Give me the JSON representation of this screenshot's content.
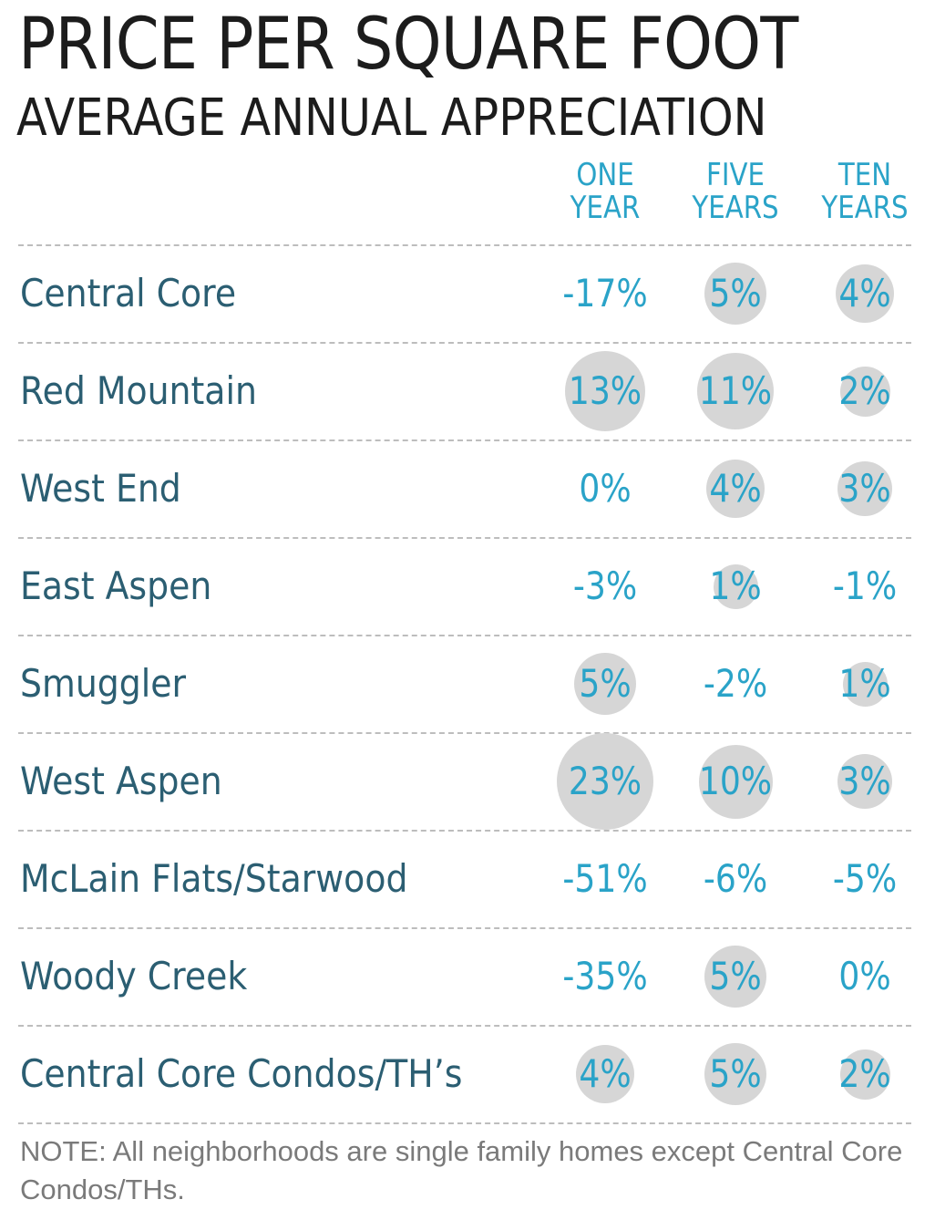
{
  "chart_data": {
    "type": "table",
    "title": "PRICE PER SQUARE FOOT",
    "subtitle": "AVERAGE ANNUAL APPRECIATION",
    "columns": [
      {
        "line1": "ONE",
        "line2": "YEAR"
      },
      {
        "line1": "FIVE",
        "line2": "YEARS"
      },
      {
        "line1": "TEN",
        "line2": "YEARS"
      }
    ],
    "rows": [
      {
        "name": "Central Core",
        "values": [
          -17,
          5,
          4
        ],
        "labels": [
          "-17%",
          "5%",
          "4%"
        ]
      },
      {
        "name": "Red Mountain",
        "values": [
          13,
          11,
          2
        ],
        "labels": [
          "13%",
          "11%",
          "2%"
        ]
      },
      {
        "name": "West End",
        "values": [
          0,
          4,
          3
        ],
        "labels": [
          "0%",
          "4%",
          "3%"
        ]
      },
      {
        "name": "East Aspen",
        "values": [
          -3,
          1,
          -1
        ],
        "labels": [
          "-3%",
          "1%",
          "-1%"
        ]
      },
      {
        "name": "Smuggler",
        "values": [
          5,
          -2,
          1
        ],
        "labels": [
          "5%",
          "-2%",
          "1%"
        ]
      },
      {
        "name": "West Aspen",
        "values": [
          23,
          10,
          3
        ],
        "labels": [
          "23%",
          "10%",
          "3%"
        ]
      },
      {
        "name": "McLain Flats/Starwood",
        "values": [
          -51,
          -6,
          -5
        ],
        "labels": [
          "-51%",
          "-6%",
          "-5%"
        ]
      },
      {
        "name": "Woody Creek",
        "values": [
          -35,
          5,
          0
        ],
        "labels": [
          "-35%",
          "5%",
          "0%"
        ]
      },
      {
        "name": "Central Core Condos/TH’s",
        "values": [
          4,
          5,
          2
        ],
        "labels": [
          "4%",
          "5%",
          "2%"
        ]
      }
    ],
    "note": "NOTE: All neighborhoods are single family homes except Central Core Condos/THs.",
    "colors": {
      "title": "#1c1c1c",
      "label": "#2b5e72",
      "value": "#2aa3c8",
      "circle": "#d6d6d6",
      "rule": "#bdbdbd",
      "note": "#7a7a7a"
    }
  }
}
